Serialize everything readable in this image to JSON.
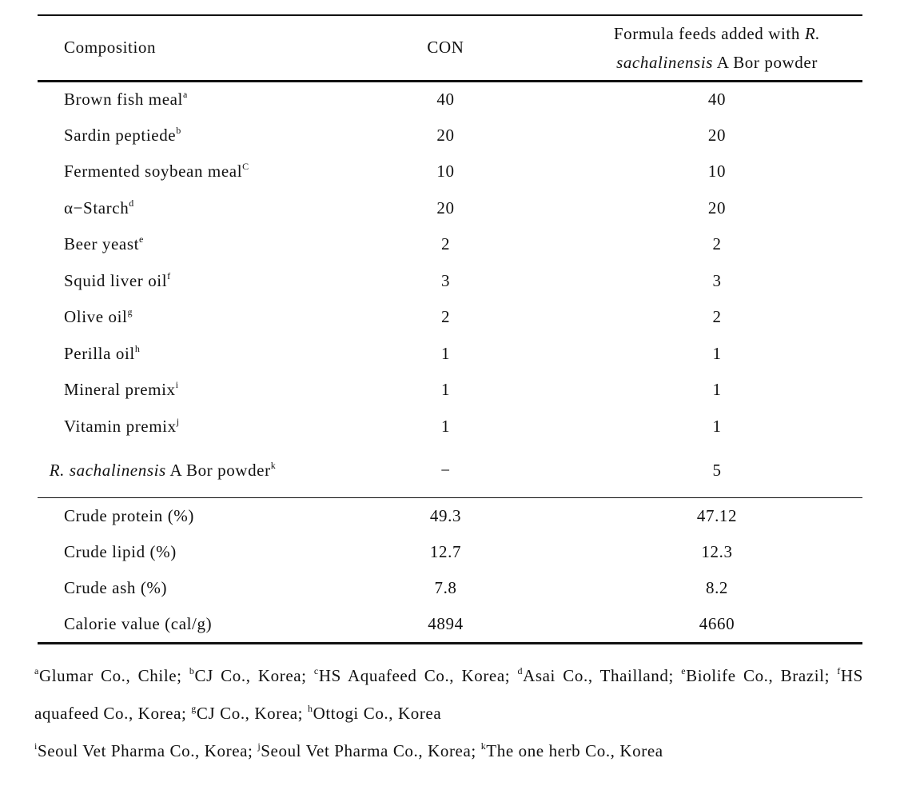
{
  "table": {
    "header": {
      "composition": "Composition",
      "con": "CON",
      "treatment": [
        "Formula feeds added with",
        "R.",
        "sachalinensis",
        "A Bor powder"
      ]
    },
    "rows": [
      {
        "label": "Brown fish meal",
        "sup": "a",
        "con": 40,
        "treatment": 40
      },
      {
        "label": "Sardin peptiede",
        "sup": "b",
        "con": 20,
        "treatment": 20
      },
      {
        "label": "Fermented soybean meal",
        "sup": "C",
        "con": 10,
        "treatment": 10
      },
      {
        "label": "α−Starch",
        "sup": "d",
        "con": 20,
        "treatment": 20
      },
      {
        "label": "Beer yeast",
        "sup": "e",
        "con": 2,
        "treatment": 2
      },
      {
        "label": "Squid liver oil",
        "sup": "f",
        "con": 3,
        "treatment": 3
      },
      {
        "label": "Olive oil",
        "sup": "g",
        "con": 2,
        "treatment": 2
      },
      {
        "label": "Perilla oil",
        "sup": "h",
        "con": 1,
        "treatment": 1
      },
      {
        "label": "Mineral premix",
        "sup": "i",
        "con": 1,
        "treatment": 1
      },
      {
        "label": "Vitamin premix",
        "sup": "j",
        "con": 1,
        "treatment": 1
      },
      {
        "label_italic": "R. sachalinensis",
        "label": "A Bor powder",
        "sup": "k",
        "con": "−",
        "treatment": 5
      }
    ],
    "totals": [
      {
        "label": "Crude protein (%)",
        "con": 49.3,
        "treatment": 47.12
      },
      {
        "label": "Crude lipid (%)",
        "con": 12.7,
        "treatment": 12.3
      },
      {
        "label": "Crude ash (%)",
        "con": 7.8,
        "treatment": 8.2
      },
      {
        "label": "Calorie value (cal/g)",
        "con": 4894,
        "treatment": 4660
      }
    ]
  },
  "footnotes": [
    [
      {
        "sup": "a",
        "text": "Glumar Co., Chile;"
      },
      {
        "sup": "b",
        "text": "CJ Co., Korea;"
      },
      {
        "sup": "c",
        "text": "HS Aquafeed Co., Korea;"
      },
      {
        "sup": "d",
        "text": "Asai Co., Thailland;"
      },
      {
        "sup": "e",
        "text": "Biolife Co., Brazil;"
      },
      {
        "sup": "f",
        "text": "HS aquafeed Co., Korea;"
      },
      {
        "sup": "g",
        "text": "CJ Co., Korea;"
      },
      {
        "sup": "h",
        "text": "Ottogi Co., Korea"
      }
    ],
    [
      {
        "sup": "i",
        "text": "Seoul Vet Pharma Co., Korea;"
      },
      {
        "sup": "j",
        "text": "Seoul Vet Pharma Co., Korea;"
      },
      {
        "sup": "k",
        "text": "The one herb Co., Korea"
      }
    ]
  ]
}
